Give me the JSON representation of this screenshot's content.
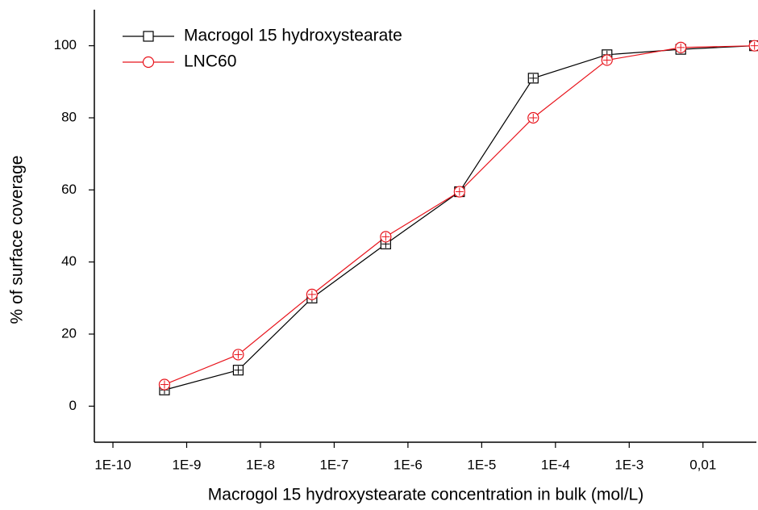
{
  "chart_data": {
    "type": "line",
    "xlabel": "Macrogol 15 hydroxystearate concentration in bulk (mol/L)",
    "ylabel": "% of surface coverage",
    "xscale": "log",
    "x": [
      5e-10,
      5e-09,
      5e-08,
      5e-07,
      5e-06,
      5e-05,
      0.0005,
      0.005,
      0.05
    ],
    "series": [
      {
        "name": "Macrogol 15 hydroxystearate",
        "color": "#000000",
        "marker": "square",
        "values": [
          4.5,
          10,
          30,
          45,
          59.5,
          91,
          97.5,
          99,
          100
        ]
      },
      {
        "name": "LNC60",
        "color": "#e8141c",
        "marker": "circle",
        "values": [
          6,
          14.3,
          31,
          47,
          59.5,
          80,
          96,
          99.5,
          100
        ]
      }
    ],
    "xlim": [
      5.6e-11,
      0.053
    ],
    "xticks": [
      {
        "value": 1e-10,
        "label": "1E-10"
      },
      {
        "value": 1e-09,
        "label": "1E-9"
      },
      {
        "value": 1e-08,
        "label": "1E-8"
      },
      {
        "value": 1e-07,
        "label": "1E-7"
      },
      {
        "value": 1e-06,
        "label": "1E-6"
      },
      {
        "value": 1e-05,
        "label": "1E-5"
      },
      {
        "value": 0.0001,
        "label": "1E-4"
      },
      {
        "value": 0.001,
        "label": "1E-3"
      },
      {
        "value": 0.01,
        "label": "0,01"
      }
    ],
    "ylim": [
      -10,
      110
    ],
    "yticks": [
      0,
      20,
      40,
      60,
      80,
      100
    ],
    "legend": "upper-left"
  }
}
